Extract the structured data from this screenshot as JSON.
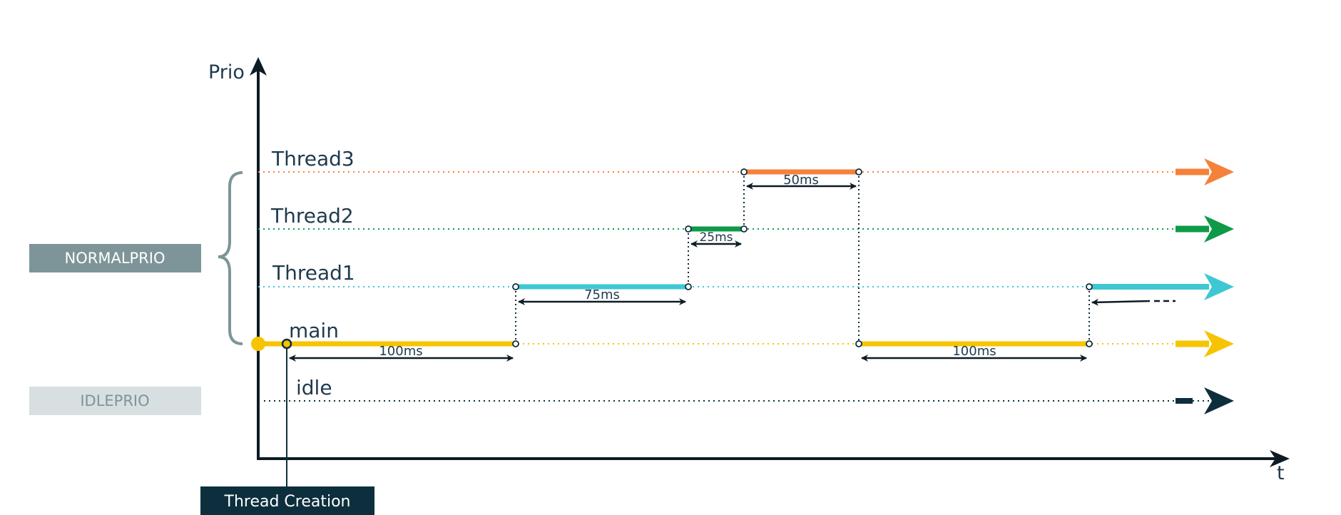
{
  "axes": {
    "y_label": "Prio",
    "x_label": "t"
  },
  "priority_groups": {
    "normal": "NORMALPRIO",
    "idle": "IDLEPRIO"
  },
  "threads": {
    "thread3": "Thread3",
    "thread2": "Thread2",
    "thread1": "Thread1",
    "main": "main",
    "idle": "idle"
  },
  "durations": {
    "thread3_slice": "50ms",
    "thread2_slice": "25ms",
    "thread1_slice": "75ms",
    "main_first_slice": "100ms",
    "main_second_slice": "100ms"
  },
  "event_label": "Thread Creation",
  "colors": {
    "thread3": "#f5813a",
    "thread2": "#0e9a48",
    "thread1": "#3fc7d3",
    "main": "#f6c400",
    "idle": "#0d2f3d",
    "axis": "#0d1b24",
    "normalprio_box": "#7d9598",
    "idleprio_box": "#d7dfe0",
    "thread_creation_box": "#0d2f3d"
  }
}
